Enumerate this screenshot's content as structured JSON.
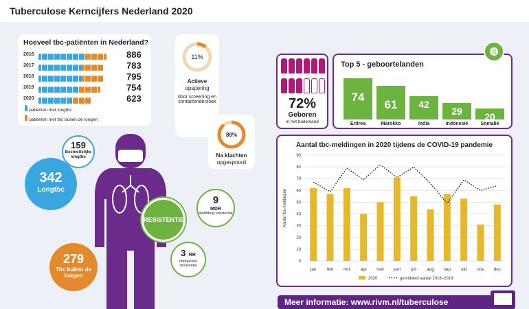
{
  "title": "Tuberculose Kerncijfers Nederland 2020",
  "patients": {
    "heading": "Hoeveel tbc-patiënten in Nederland?",
    "rows": [
      {
        "year": "2016",
        "value": "886",
        "lung": 15,
        "ext": 7
      },
      {
        "year": "2017",
        "value": "783",
        "lung": 14,
        "ext": 7
      },
      {
        "year": "2018",
        "value": "795",
        "lung": 14,
        "ext": 7
      },
      {
        "year": "2019",
        "value": "754",
        "lung": 13,
        "ext": 7
      },
      {
        "year": "2020",
        "value": "623",
        "lung": 11,
        "ext": 6
      }
    ],
    "legend_lung": "patiënten met longtbc",
    "legend_ext": "patiënten met tbc buiten de longen"
  },
  "active": {
    "pct": "11%",
    "pct_value": 11,
    "label1": "Actieve",
    "label2": "opsporing",
    "desc": "door screening en contactonderzoek"
  },
  "complaints": {
    "pct": "89%",
    "pct_value": 89,
    "label1": "Na klachten",
    "label2": "opgespoord"
  },
  "body": {
    "infectious_num": "159",
    "infectious_label": "Besmettelijke longtbc",
    "lung_num": "342",
    "lung_label": "Longtbc",
    "ext_num": "279",
    "ext_label": "Tbc buiten de longen",
    "resist_label": "RESISTENTIE",
    "mdr_num": "9",
    "mdr_code": "MDR",
    "mdr_desc": "multidrug resistentie",
    "rr_num": "3",
    "rr_code": "RR",
    "rr_desc": "rifampicine resistentie"
  },
  "born": {
    "pct": "72%",
    "label": "Geboren",
    "sub": "in het buitenland"
  },
  "top5": {
    "heading": "Top 5 - geboortelanden",
    "countries": [
      {
        "name": "Eritrea",
        "value": 74
      },
      {
        "name": "Marokko",
        "value": 61
      },
      {
        "name": "India",
        "value": 42
      },
      {
        "name": "Indonesië",
        "value": 29
      },
      {
        "name": "Somalië",
        "value": 20
      }
    ]
  },
  "chart_data": {
    "type": "bar",
    "title": "Aantal tbc-meldingen in 2020 tijdens de COVID-19 pandemie",
    "ylabel": "Aantal tbc-meldingen",
    "categories": [
      "jan",
      "feb",
      "mrt",
      "apr",
      "mei",
      "juni",
      "juli",
      "aug",
      "sep",
      "okt",
      "nov",
      "dec"
    ],
    "series": [
      {
        "name": "2020",
        "type": "bar",
        "values": [
          62,
          57,
          62,
          40,
          50,
          71,
          55,
          44,
          57,
          53,
          31,
          48
        ]
      },
      {
        "name": "gemiddeld aantal 2016–2019",
        "type": "line",
        "values": [
          67,
          59,
          79,
          69,
          82,
          71,
          80,
          66,
          49,
          69,
          60,
          64
        ]
      }
    ],
    "ylim": [
      0,
      90
    ],
    "yticks": [
      0,
      10,
      20,
      30,
      40,
      50,
      60,
      70,
      80,
      90
    ],
    "grid": true,
    "legend": "bottom"
  },
  "footer": "Meer informatie: www.rivm.nl/tuberculose",
  "colors": {
    "purple": "#5d2483",
    "blue": "#3aa6e0",
    "orange": "#e38a2c",
    "green": "#6cb33f",
    "magenta": "#b0197c",
    "yellow": "#e6b82b"
  }
}
